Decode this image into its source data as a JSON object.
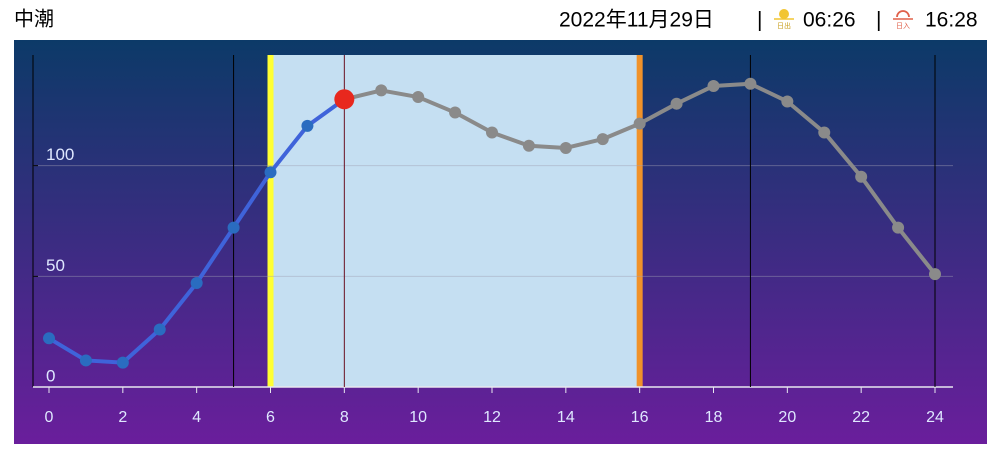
{
  "header": {
    "tide": "中潮",
    "date": "2022年11月29日",
    "separator": "|",
    "sunrise_icon": "日出",
    "sunrise": "06:26",
    "sunset_icon": "日入",
    "sunset": "16:28"
  },
  "chart_data": {
    "type": "line",
    "x": [
      0,
      1,
      2,
      3,
      4,
      5,
      6,
      7,
      8,
      9,
      10,
      11,
      12,
      13,
      14,
      15,
      16,
      17,
      18,
      19,
      20,
      21,
      22,
      23,
      24
    ],
    "values": [
      22,
      12,
      11,
      26,
      47,
      72,
      97,
      118,
      130,
      134,
      131,
      124,
      115,
      109,
      108,
      112,
      119,
      128,
      136,
      137,
      129,
      115,
      95,
      72,
      51
    ],
    "xlim": [
      0,
      24
    ],
    "xticks": [
      0,
      2,
      4,
      6,
      8,
      10,
      12,
      14,
      16,
      18,
      20,
      22,
      24
    ],
    "ylim": [
      0,
      150
    ],
    "yticks": [
      0,
      50,
      100
    ],
    "grid": true,
    "current_x": 8,
    "daylight": [
      6,
      16
    ],
    "vlines": [
      5,
      19,
      24
    ],
    "past_color": "#3f63da",
    "past_point_color": "#2a6cc0",
    "future_color": "#8a8a8a",
    "current_color": "#e8281e",
    "daylight_color": "#c5dff2",
    "sunrise_color": "#ffff33",
    "sunset_color": "#f0922a"
  }
}
